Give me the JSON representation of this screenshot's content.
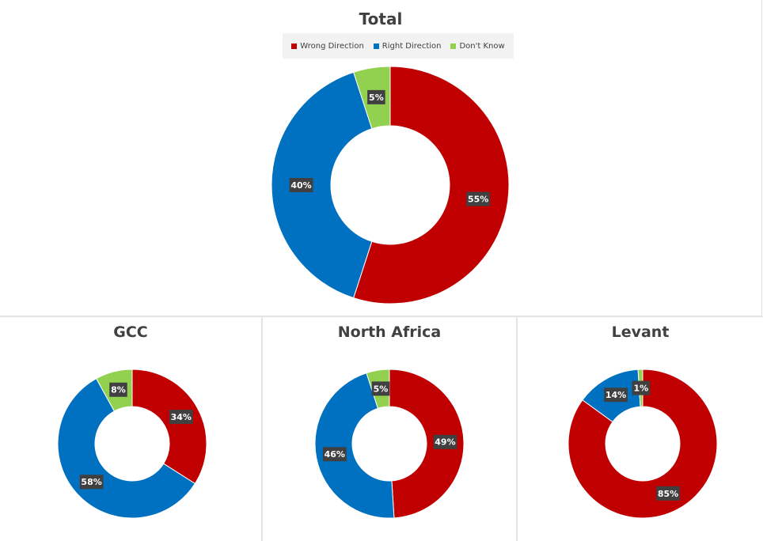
{
  "legend": {
    "wrong": "Wrong Direction",
    "right": "Right Direction",
    "dont_know": "Don't Know"
  },
  "colors": {
    "wrong": "#C00000",
    "right": "#0070C0",
    "dont_know": "#92D050",
    "label_bg": "#404040",
    "label_text": "#ffffff"
  },
  "chart_data": [
    {
      "type": "pie",
      "title": "Total",
      "categories": [
        "Wrong Direction",
        "Right Direction",
        "Don't Know"
      ],
      "values": [
        55,
        40,
        5
      ],
      "labels": [
        "55%",
        "40%",
        "5%"
      ],
      "legend_position": "top"
    },
    {
      "type": "pie",
      "title": "GCC",
      "categories": [
        "Wrong Direction",
        "Right Direction",
        "Don't Know"
      ],
      "values": [
        34,
        58,
        8
      ],
      "labels": [
        "34%",
        "58%",
        "8%"
      ]
    },
    {
      "type": "pie",
      "title": "North Africa",
      "categories": [
        "Wrong Direction",
        "Right Direction",
        "Don't Know"
      ],
      "values": [
        49,
        46,
        5
      ],
      "labels": [
        "49%",
        "46%",
        "5%"
      ]
    },
    {
      "type": "pie",
      "title": "Levant",
      "categories": [
        "Wrong Direction",
        "Right Direction",
        "Don't Know"
      ],
      "values": [
        85,
        14,
        1
      ],
      "labels": [
        "85%",
        "14%",
        "1%"
      ]
    }
  ]
}
